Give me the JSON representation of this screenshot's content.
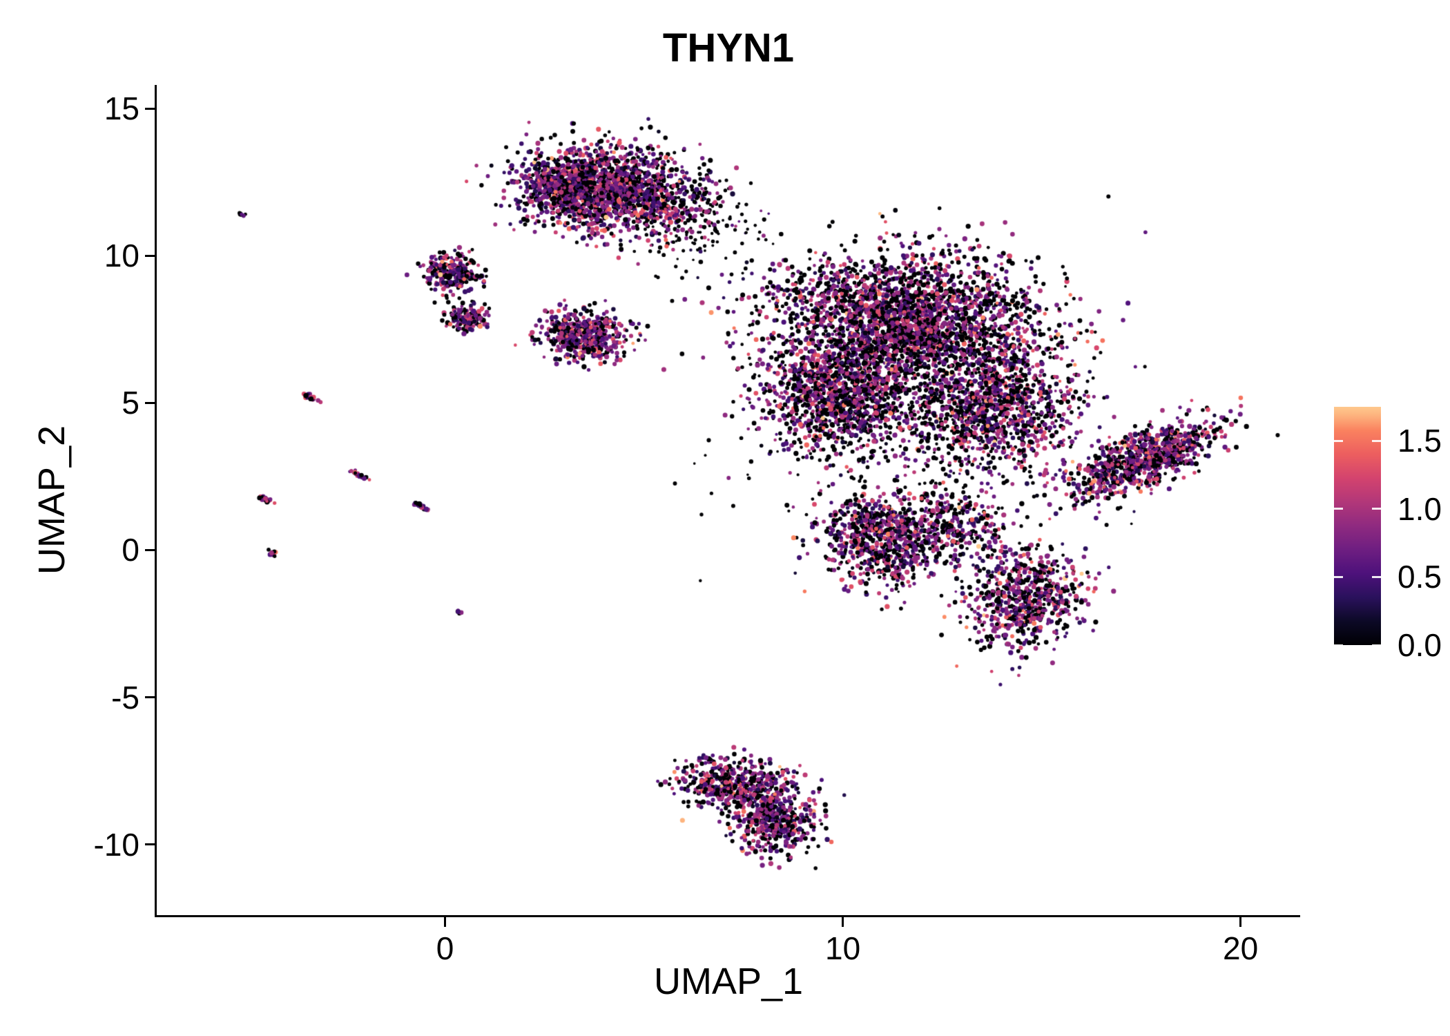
{
  "figure": {
    "title": "THYN1"
  },
  "axes": {
    "x_label": "UMAP_1",
    "y_label": "UMAP_2"
  },
  "chart_data": {
    "type": "scatter",
    "title": "THYN1",
    "xlabel": "UMAP_1",
    "ylabel": "UMAP_2",
    "x_domain": [
      -7.25,
      21.5
    ],
    "y_domain": [
      -12.4,
      15.8
    ],
    "x_ticks": [
      {
        "label": "0",
        "value": 0
      },
      {
        "label": "10",
        "value": 10
      },
      {
        "label": "20",
        "value": 20
      }
    ],
    "y_ticks": [
      {
        "label": "15",
        "value": 15
      },
      {
        "label": "10",
        "value": 10
      },
      {
        "label": "5",
        "value": 5
      },
      {
        "label": "0",
        "value": 0
      },
      {
        "label": "-5",
        "value": -5
      },
      {
        "label": "-10",
        "value": -10
      }
    ],
    "grid": false,
    "legend": {
      "position": "right",
      "bar_range": [
        0,
        1.75
      ],
      "ticks": [
        {
          "label": "1.5",
          "value": 1.5
        },
        {
          "label": "1.0",
          "value": 1.0
        },
        {
          "label": "0.5",
          "value": 0.5
        },
        {
          "label": "0.0",
          "value": 0.0
        }
      ]
    },
    "colormap": {
      "name": "magma",
      "stops": [
        [
          0.0,
          "#000004"
        ],
        [
          0.1,
          "#0c0926"
        ],
        [
          0.2,
          "#2a115c"
        ],
        [
          0.3,
          "#4d117b"
        ],
        [
          0.4,
          "#6e1e81"
        ],
        [
          0.5,
          "#8f2a80"
        ],
        [
          0.6,
          "#b23779"
        ],
        [
          0.7,
          "#d3436e"
        ],
        [
          0.8,
          "#ec5e5f"
        ],
        [
          0.9,
          "#fa815f"
        ],
        [
          0.96,
          "#fdb07c"
        ],
        [
          1.0,
          "#fec98d"
        ]
      ]
    },
    "point_style": {
      "radius": 3.0,
      "radius_jitter": 0.7,
      "min_radius": 1.8
    },
    "expression": {
      "zero_color_value": 0,
      "mean": 0.78,
      "sd": 0.36,
      "max": 1.75
    },
    "seed": 42,
    "clusters": [
      {
        "name": "top-blob",
        "cx": 4.2,
        "cy": 12.2,
        "sx": 1.15,
        "sy": 0.75,
        "angle": -8,
        "n": 1500,
        "p0": 0.32
      },
      {
        "name": "top-blob-core",
        "cx": 3.1,
        "cy": 12.4,
        "sx": 0.55,
        "sy": 0.45,
        "angle": 0,
        "n": 500,
        "p0": 0.3
      },
      {
        "name": "upper-left-a",
        "cx": 0.15,
        "cy": 9.4,
        "sx": 0.38,
        "sy": 0.33,
        "angle": 0,
        "n": 260,
        "p0": 0.35
      },
      {
        "name": "upper-left-b",
        "cx": 0.55,
        "cy": 7.9,
        "sx": 0.3,
        "sy": 0.22,
        "angle": 0,
        "n": 150,
        "p0": 0.35
      },
      {
        "name": "mid-left-blob",
        "cx": 3.5,
        "cy": 7.3,
        "sx": 0.55,
        "sy": 0.45,
        "angle": -10,
        "n": 520,
        "p0": 0.3
      },
      {
        "name": "main-upper",
        "cx": 11.6,
        "cy": 7.8,
        "sx": 1.7,
        "sy": 1.15,
        "angle": -5,
        "n": 2700,
        "p0": 0.4
      },
      {
        "name": "main-left",
        "cx": 9.9,
        "cy": 5.2,
        "sx": 0.95,
        "sy": 0.95,
        "angle": 0,
        "n": 1100,
        "p0": 0.38
      },
      {
        "name": "main-right",
        "cx": 13.8,
        "cy": 4.8,
        "sx": 1.05,
        "sy": 1.0,
        "angle": 0,
        "n": 1000,
        "p0": 0.38
      },
      {
        "name": "main-lower-lobe",
        "cx": 11.0,
        "cy": 0.4,
        "sx": 0.8,
        "sy": 0.8,
        "angle": 0,
        "n": 750,
        "p0": 0.35
      },
      {
        "name": "main-lower-mid",
        "cx": 12.8,
        "cy": 0.8,
        "sx": 0.6,
        "sy": 0.6,
        "angle": 0,
        "n": 250,
        "p0": 0.35
      },
      {
        "name": "main-bottom-right",
        "cx": 14.6,
        "cy": -1.6,
        "sx": 0.7,
        "sy": 0.85,
        "angle": -20,
        "n": 700,
        "p0": 0.33
      },
      {
        "name": "main-halo",
        "cx": 12.0,
        "cy": 4.5,
        "sx": 2.2,
        "sy": 2.4,
        "angle": 0,
        "n": 500,
        "p0": 0.65,
        "size": 2.5
      },
      {
        "name": "right-wing",
        "cx": 17.6,
        "cy": 3.1,
        "sx": 1.05,
        "sy": 0.4,
        "angle": 32,
        "n": 900,
        "p0": 0.3
      },
      {
        "name": "bottom-upper",
        "cx": 7.4,
        "cy": -8.0,
        "sx": 0.8,
        "sy": 0.45,
        "angle": -8,
        "n": 520,
        "p0": 0.27
      },
      {
        "name": "bottom-lower",
        "cx": 8.3,
        "cy": -9.3,
        "sx": 0.5,
        "sy": 0.55,
        "angle": -15,
        "n": 380,
        "p0": 0.27
      },
      {
        "name": "bridge-sparse",
        "cx": 6.6,
        "cy": 11.0,
        "sx": 0.75,
        "sy": 0.75,
        "angle": 0,
        "n": 130,
        "p0": 0.7,
        "size": 2.5
      },
      {
        "name": "streak-1",
        "cx": -3.35,
        "cy": 5.15,
        "sx": 0.13,
        "sy": 0.03,
        "angle": -35,
        "n": 28,
        "p0": 0.3
      },
      {
        "name": "streak-2",
        "cx": -2.15,
        "cy": 2.55,
        "sx": 0.12,
        "sy": 0.03,
        "angle": -35,
        "n": 26,
        "p0": 0.3
      },
      {
        "name": "streak-3",
        "cx": -4.55,
        "cy": 1.75,
        "sx": 0.12,
        "sy": 0.03,
        "angle": -35,
        "n": 26,
        "p0": 0.3
      },
      {
        "name": "streak-4",
        "cx": -0.62,
        "cy": 1.5,
        "sx": 0.13,
        "sy": 0.03,
        "angle": -35,
        "n": 28,
        "p0": 0.3
      },
      {
        "name": "speck-1",
        "cx": -4.35,
        "cy": -0.08,
        "sx": 0.07,
        "sy": 0.04,
        "angle": -35,
        "n": 12,
        "p0": 0.4
      },
      {
        "name": "speck-2",
        "cx": 0.35,
        "cy": -2.08,
        "sx": 0.04,
        "sy": 0.04,
        "angle": 0,
        "n": 5,
        "p0": 0.2
      },
      {
        "name": "speck-3",
        "cx": -5.1,
        "cy": 11.4,
        "sx": 0.07,
        "sy": 0.03,
        "angle": -30,
        "n": 8,
        "p0": 0.85
      }
    ]
  }
}
